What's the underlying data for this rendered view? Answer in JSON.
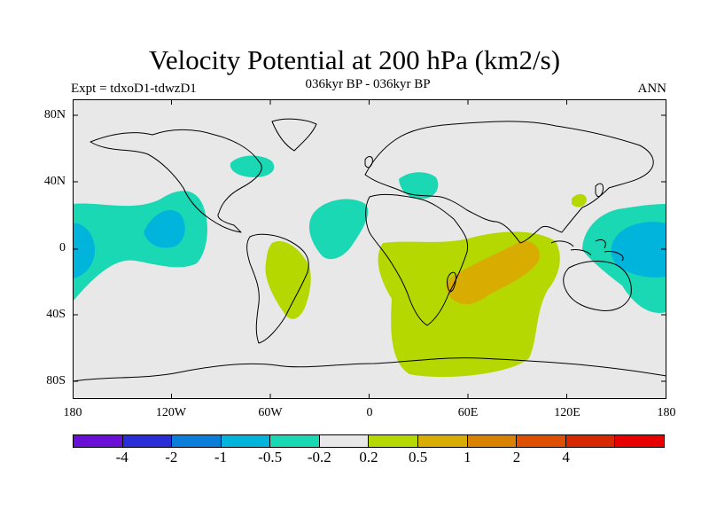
{
  "title": "Velocity Potential at 200 hPa (km2/s)",
  "subtitle_left": "Expt = tdxoD1-tdwzD1",
  "subtitle_center": "036kyr BP - 036kyr BP",
  "subtitle_right": "ANN",
  "map": {
    "lat_ticks": [
      "80N",
      "40N",
      "0",
      "40S",
      "80S"
    ],
    "lon_ticks": [
      "180",
      "120W",
      "60W",
      "0",
      "60E",
      "120E",
      "180"
    ],
    "background_color": "#e8e8e8",
    "coastline_color": "#000000"
  },
  "colorbar": {
    "colors": [
      "#6a0fd6",
      "#2a2ed6",
      "#0a7ed8",
      "#00b4dc",
      "#1ad8b4",
      "#e8e8e8",
      "#b4d800",
      "#d8ac00",
      "#d88200",
      "#dc5000",
      "#d82800",
      "#e80000"
    ],
    "labels": [
      "-4",
      "-2",
      "-1",
      "-0.5",
      "-0.2",
      "0.2",
      "0.5",
      "1",
      "2",
      "4"
    ]
  },
  "chart_data": {
    "type": "heatmap",
    "field": "velocity potential difference",
    "contour_levels": [
      -4,
      -2,
      -1,
      -0.5,
      -0.2,
      0.2,
      0.5,
      1,
      2,
      4
    ],
    "regions": [
      {
        "level": "-0.5..-0.2",
        "location": "central-east Pacific, 40N-40S"
      },
      {
        "level": "-1..-0.5",
        "location": "central-east Pacific core near equator"
      },
      {
        "level": "-0.5..-0.2",
        "location": "western Pacific / Maritime Continent, 25N-40S"
      },
      {
        "level": "-1..-0.5",
        "location": "western Pacific core near equator"
      },
      {
        "level": "-0.5..-0.2",
        "location": "eastern North America, ~45N"
      },
      {
        "level": "-0.5..-0.2",
        "location": "tropical Atlantic, 20N-10S"
      },
      {
        "level": "-0.5..-0.2",
        "location": "Mediterranean, ~40N"
      },
      {
        "level": "0.2..0.5",
        "location": "South America, 10N-40S"
      },
      {
        "level": "0.2..0.5",
        "location": "Africa and Indian Ocean, 10N-75S"
      },
      {
        "level": "0.5..1",
        "location": "western Indian Ocean, 20S-35S"
      },
      {
        "level": "0.2..0.5",
        "location": "East China Sea, ~30N"
      }
    ]
  }
}
